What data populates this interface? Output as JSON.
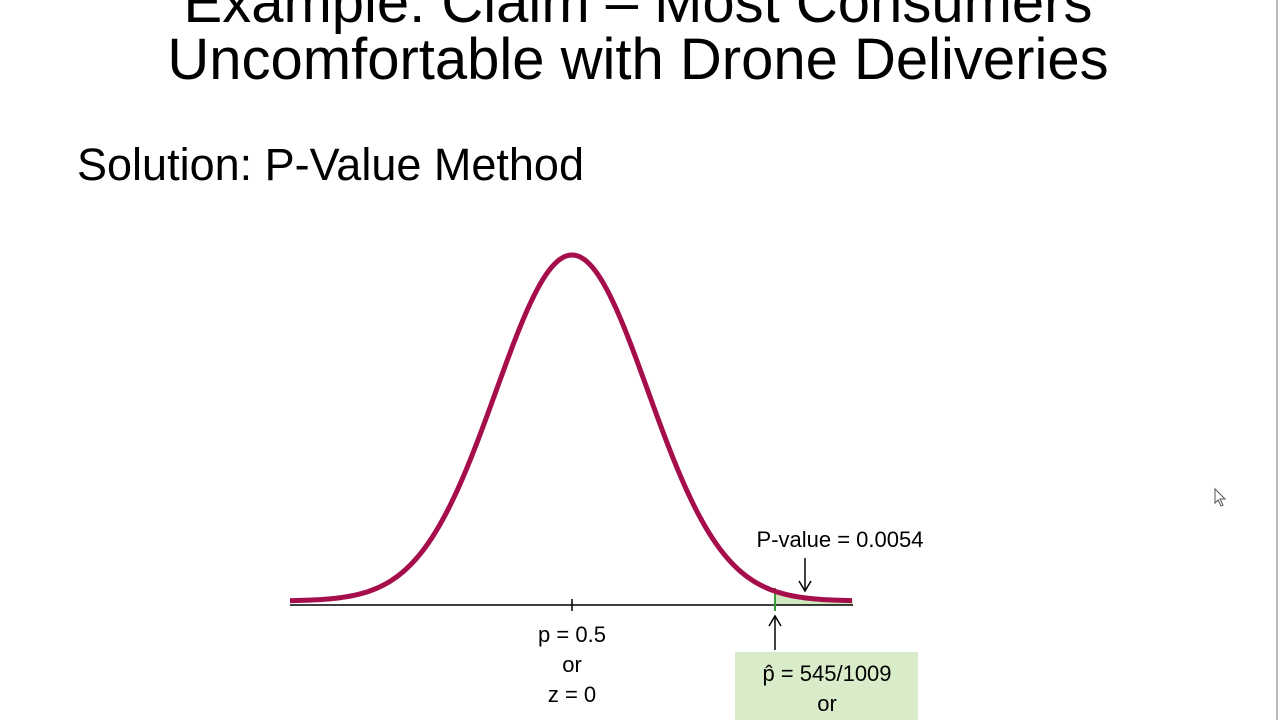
{
  "slide": {
    "title_lines": [
      "Example: Claim – Most Consumers",
      "Uncomfortable with Drone Deliveries"
    ],
    "subtitle": "Solution: P-Value Method"
  },
  "figure": {
    "p_value_label": "P-value = 0.0054",
    "center_labels": [
      "p = 0.5",
      "or",
      "z = 0"
    ],
    "statistic_labels": [
      "p̂ = 545/1009",
      "or"
    ]
  }
}
